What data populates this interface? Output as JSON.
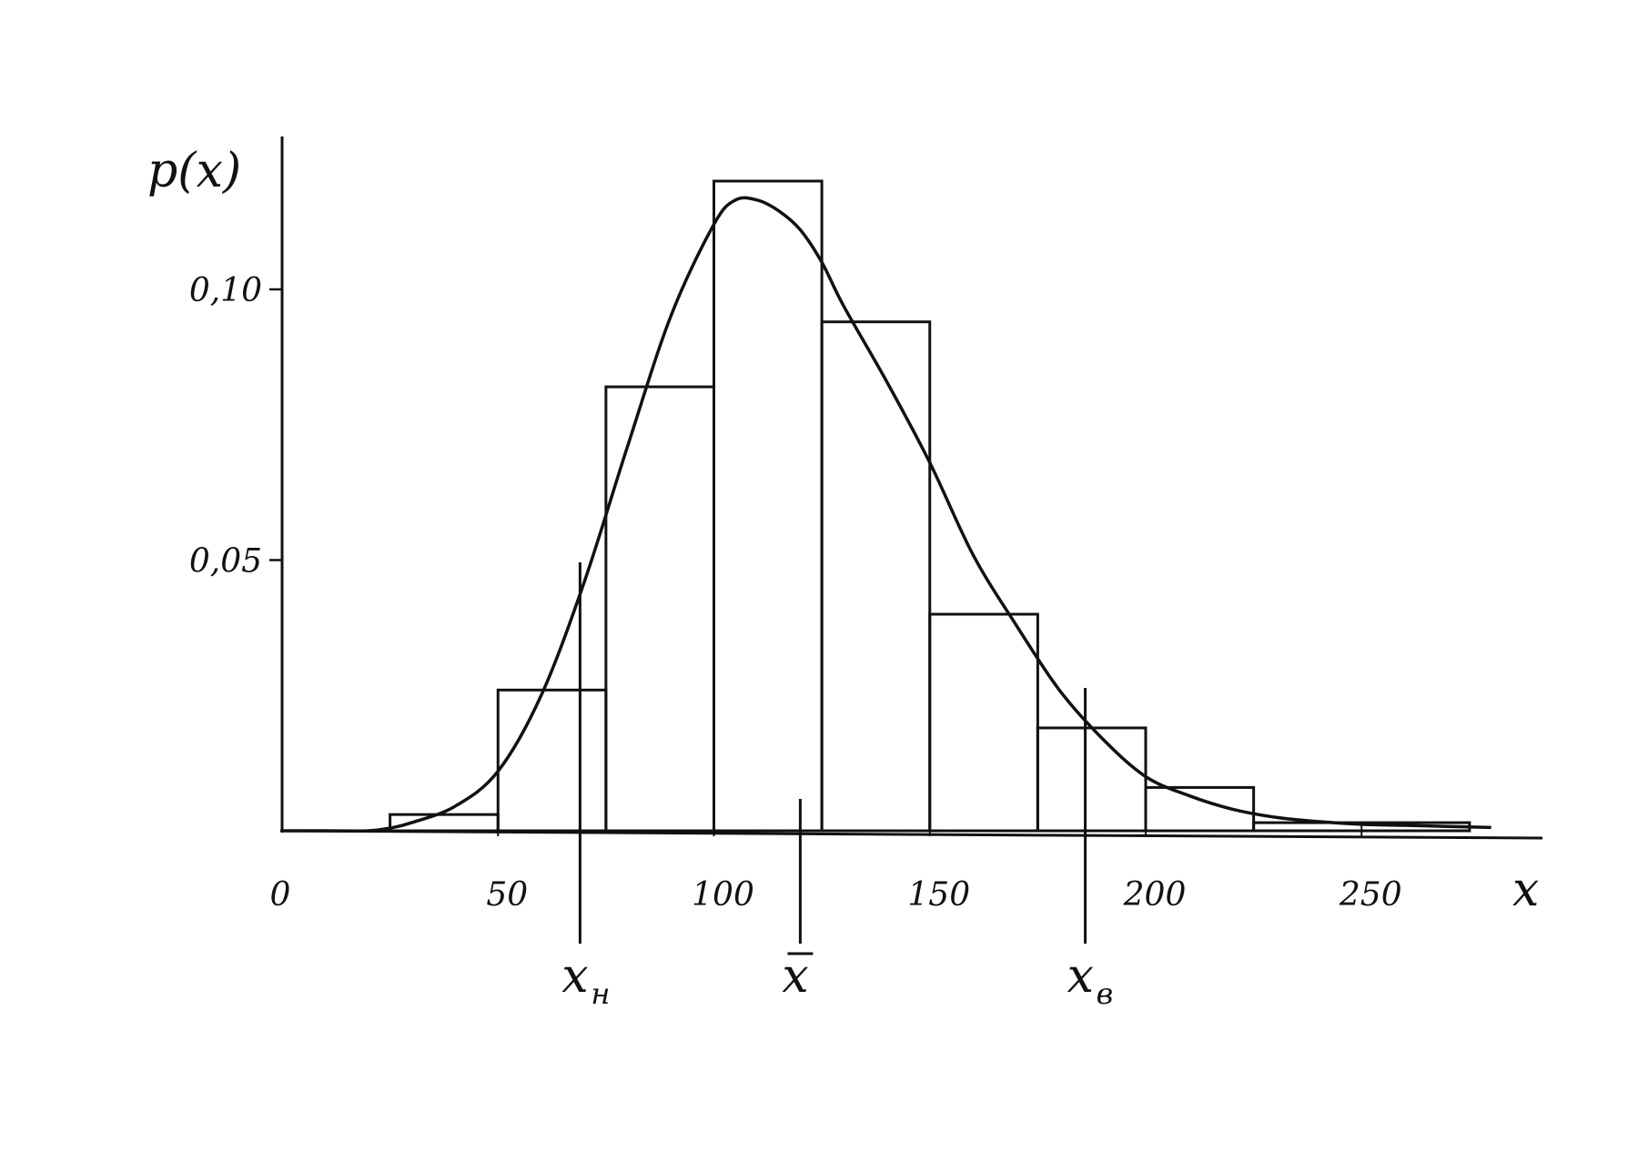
{
  "colors": {
    "ink": "#111111",
    "background": "#ffffff"
  },
  "chart_data": {
    "type": "bar",
    "title": "",
    "xlabel": "x",
    "ylabel": "p(x)",
    "xlim": [
      0,
      295
    ],
    "ylim": [
      0,
      0.13
    ],
    "grid": false,
    "x_ticks": [
      {
        "value": 0,
        "label": "0"
      },
      {
        "value": 50,
        "label": "50"
      },
      {
        "value": 100,
        "label": "100"
      },
      {
        "value": 150,
        "label": "150"
      },
      {
        "value": 200,
        "label": "200"
      },
      {
        "value": 250,
        "label": "250"
      }
    ],
    "y_ticks": [
      {
        "value": 0.05,
        "label": "0,05"
      },
      {
        "value": 0.1,
        "label": "0,10"
      }
    ],
    "bins": [
      {
        "start": 25,
        "end": 50,
        "value": 0.003
      },
      {
        "start": 50,
        "end": 75,
        "value": 0.026
      },
      {
        "start": 75,
        "end": 100,
        "value": 0.082
      },
      {
        "start": 100,
        "end": 125,
        "value": 0.12
      },
      {
        "start": 125,
        "end": 150,
        "value": 0.094
      },
      {
        "start": 150,
        "end": 175,
        "value": 0.04
      },
      {
        "start": 175,
        "end": 200,
        "value": 0.019
      },
      {
        "start": 200,
        "end": 225,
        "value": 0.008
      },
      {
        "start": 225,
        "end": 275,
        "value": 0.0015
      }
    ],
    "density_curve": {
      "x": [
        0,
        10,
        20,
        25,
        30,
        40,
        50,
        60,
        70,
        80,
        90,
        100,
        105,
        110,
        115,
        120,
        125,
        130,
        140,
        150,
        160,
        170,
        180,
        190,
        200,
        210,
        220,
        230,
        240,
        250,
        260,
        270,
        280
      ],
      "y": [
        0.0,
        0.0,
        0.0,
        0.0005,
        0.0015,
        0.0045,
        0.011,
        0.025,
        0.046,
        0.071,
        0.095,
        0.112,
        0.1165,
        0.1165,
        0.1145,
        0.111,
        0.105,
        0.097,
        0.083,
        0.068,
        0.051,
        0.038,
        0.026,
        0.017,
        0.01,
        0.0065,
        0.004,
        0.0025,
        0.0017,
        0.0012,
        0.001,
        0.0008,
        0.0006
      ]
    },
    "markers": [
      {
        "value": 69,
        "base": "x",
        "subscript": "н",
        "accent": ""
      },
      {
        "value": 120,
        "base": "x",
        "subscript": "",
        "accent": "bar"
      },
      {
        "value": 186,
        "base": "x",
        "subscript": "в",
        "accent": ""
      }
    ]
  }
}
